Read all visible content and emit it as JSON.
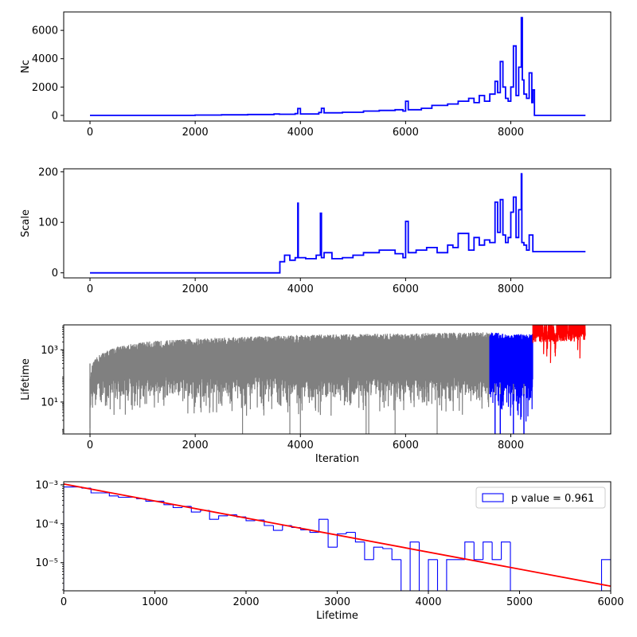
{
  "chart_data": [
    {
      "type": "line",
      "ylabel": "Nc",
      "xlabel": "",
      "xlim": [
        -500,
        9900
      ],
      "ylim": [
        -400,
        7300
      ],
      "x_ticks": [
        0,
        2000,
        4000,
        6000,
        8000
      ],
      "x_tick_labels": [
        "0",
        "2000",
        "4000",
        "6000",
        "8000"
      ],
      "y_ticks": [
        0,
        2000,
        4000,
        6000
      ],
      "y_tick_labels": [
        "0",
        "2000",
        "4000",
        "6000"
      ],
      "series": [
        {
          "color": "#0000ff",
          "x": [
            0,
            500,
            1000,
            1500,
            2000,
            2500,
            3000,
            3500,
            3600,
            3900,
            3950,
            4000,
            4350,
            4400,
            4450,
            4800,
            5200,
            5500,
            5800,
            5950,
            6000,
            6050,
            6300,
            6500,
            6800,
            7000,
            7200,
            7300,
            7400,
            7500,
            7600,
            7700,
            7750,
            7800,
            7850,
            7900,
            7950,
            8000,
            8050,
            8100,
            8150,
            8200,
            8220,
            8250,
            8300,
            8350,
            8400,
            8420,
            8450,
            8500,
            9000,
            9420
          ],
          "y": [
            0,
            0,
            0,
            0,
            20,
            40,
            60,
            100,
            80,
            120,
            480,
            100,
            200,
            500,
            180,
            220,
            300,
            350,
            400,
            300,
            1000,
            400,
            500,
            700,
            800,
            1000,
            1200,
            900,
            1400,
            1000,
            1500,
            2400,
            1600,
            3800,
            2000,
            1200,
            1000,
            2000,
            4900,
            1400,
            3400,
            6900,
            2500,
            1500,
            1200,
            3000,
            900,
            1800,
            0,
            0,
            0,
            0
          ]
        }
      ]
    },
    {
      "type": "line",
      "ylabel": "Scale",
      "xlabel": "",
      "xlim": [
        -500,
        9900
      ],
      "ylim": [
        -10,
        206
      ],
      "x_ticks": [
        0,
        2000,
        4000,
        6000,
        8000
      ],
      "x_tick_labels": [
        "0",
        "2000",
        "4000",
        "6000",
        "8000"
      ],
      "y_ticks": [
        0,
        100,
        200
      ],
      "y_tick_labels": [
        "0",
        "100",
        "200"
      ],
      "series": [
        {
          "color": "#0000ff",
          "x": [
            0,
            3600,
            3610,
            3700,
            3800,
            3900,
            3950,
            3960,
            4100,
            4300,
            4380,
            4400,
            4450,
            4600,
            4800,
            5000,
            5200,
            5500,
            5800,
            5950,
            6000,
            6050,
            6200,
            6400,
            6600,
            6800,
            6900,
            7000,
            7200,
            7300,
            7400,
            7500,
            7600,
            7700,
            7750,
            7800,
            7850,
            7900,
            7950,
            8000,
            8050,
            8100,
            8150,
            8200,
            8210,
            8250,
            8300,
            8350,
            8420,
            9420
          ],
          "y": [
            0,
            0,
            22,
            35,
            25,
            30,
            138,
            30,
            28,
            35,
            118,
            30,
            40,
            28,
            30,
            35,
            40,
            45,
            38,
            30,
            102,
            40,
            45,
            50,
            40,
            55,
            50,
            78,
            45,
            70,
            55,
            65,
            60,
            140,
            80,
            145,
            75,
            60,
            70,
            120,
            150,
            70,
            125,
            196,
            60,
            55,
            45,
            75,
            42,
            42
          ]
        }
      ]
    },
    {
      "type": "line",
      "ylabel": "Lifetime",
      "xlabel": "Iteration",
      "y_scale": "log",
      "xlim": [
        -500,
        9900
      ],
      "ylim": [
        0.6,
        9000
      ],
      "x_ticks": [
        0,
        2000,
        4000,
        6000,
        8000
      ],
      "x_tick_labels": [
        "0",
        "2000",
        "4000",
        "6000",
        "8000"
      ],
      "y_ticks": [
        10,
        1000
      ],
      "y_tick_labels": [
        "10¹",
        "10³"
      ],
      "envelope_upper": {
        "x": [
          0,
          50,
          200,
          500,
          1000,
          2000,
          3000,
          4000,
          5000,
          6000,
          7000,
          7600,
          8000,
          8420,
          9000,
          9420
        ],
        "y": [
          0.6,
          300,
          700,
          1300,
          2000,
          2700,
          3200,
          3700,
          4000,
          4300,
          4600,
          4800,
          4000,
          4000,
          4500,
          5000
        ]
      },
      "series": [
        {
          "name": "",
          "color": "#808080",
          "x_range": [
            0,
            7600
          ],
          "lower": [
            3,
            6
          ]
        },
        {
          "name": "",
          "color": "#0000ff",
          "x_range": [
            7600,
            8420
          ],
          "lower": [
            1.5,
            4
          ]
        },
        {
          "name": "",
          "color": "#ff0000",
          "x_range": [
            8420,
            9420
          ],
          "lower": [
            300,
            800
          ]
        }
      ],
      "deep_dips_x": [
        2900,
        3800,
        4000,
        5250,
        5300,
        5800,
        6600,
        7700,
        7800,
        8050,
        8250
      ]
    },
    {
      "type": "histogram",
      "xlabel": "Lifetime",
      "ylabel": "",
      "y_scale": "log",
      "xlim": [
        0,
        6000
      ],
      "ylim": [
        1.9e-06,
        0.0012
      ],
      "x_ticks": [
        0,
        1000,
        2000,
        3000,
        4000,
        5000,
        6000
      ],
      "x_tick_labels": [
        "0",
        "1000",
        "2000",
        "3000",
        "4000",
        "5000",
        "6000"
      ],
      "y_ticks": [
        1e-05,
        0.0001,
        0.001
      ],
      "y_tick_labels": [
        "10⁻⁵",
        "10⁻⁴",
        "10⁻³"
      ],
      "legend": {
        "label": "p value = 0.961",
        "location": "upper right"
      },
      "bin_width": 100,
      "bins_start": 0,
      "values": [
        0.00088,
        0.00088,
        0.00082,
        0.00062,
        0.00062,
        0.00052,
        0.00048,
        0.00048,
        0.00044,
        0.00038,
        0.00038,
        0.00031,
        0.00026,
        0.00028,
        0.0002,
        0.00022,
        0.00013,
        0.00016,
        0.00017,
        0.00015,
        0.00012,
        0.000125,
        9e-05,
        6.75e-05,
        9e-05,
        8e-05,
        7e-05,
        6e-05,
        0.00013,
        2.5e-05,
        5.5e-05,
        6e-05,
        3.4e-05,
        1.2e-05,
        2.5e-05,
        2.3e-05,
        1.2e-05,
        0,
        3.4e-05,
        0,
        1.2e-05,
        0,
        1.2e-05,
        1.2e-05,
        3.4e-05,
        1.2e-05,
        3.4e-05,
        1.2e-05,
        3.4e-05,
        0,
        0,
        0,
        0,
        0,
        0,
        0,
        0,
        0,
        0,
        1.2e-05
      ],
      "fit_line": {
        "color": "#ff0000",
        "x": [
          0,
          6000
        ],
        "y": [
          0.00105,
          2.5e-06
        ]
      },
      "hist_color": "#0000ff"
    }
  ]
}
